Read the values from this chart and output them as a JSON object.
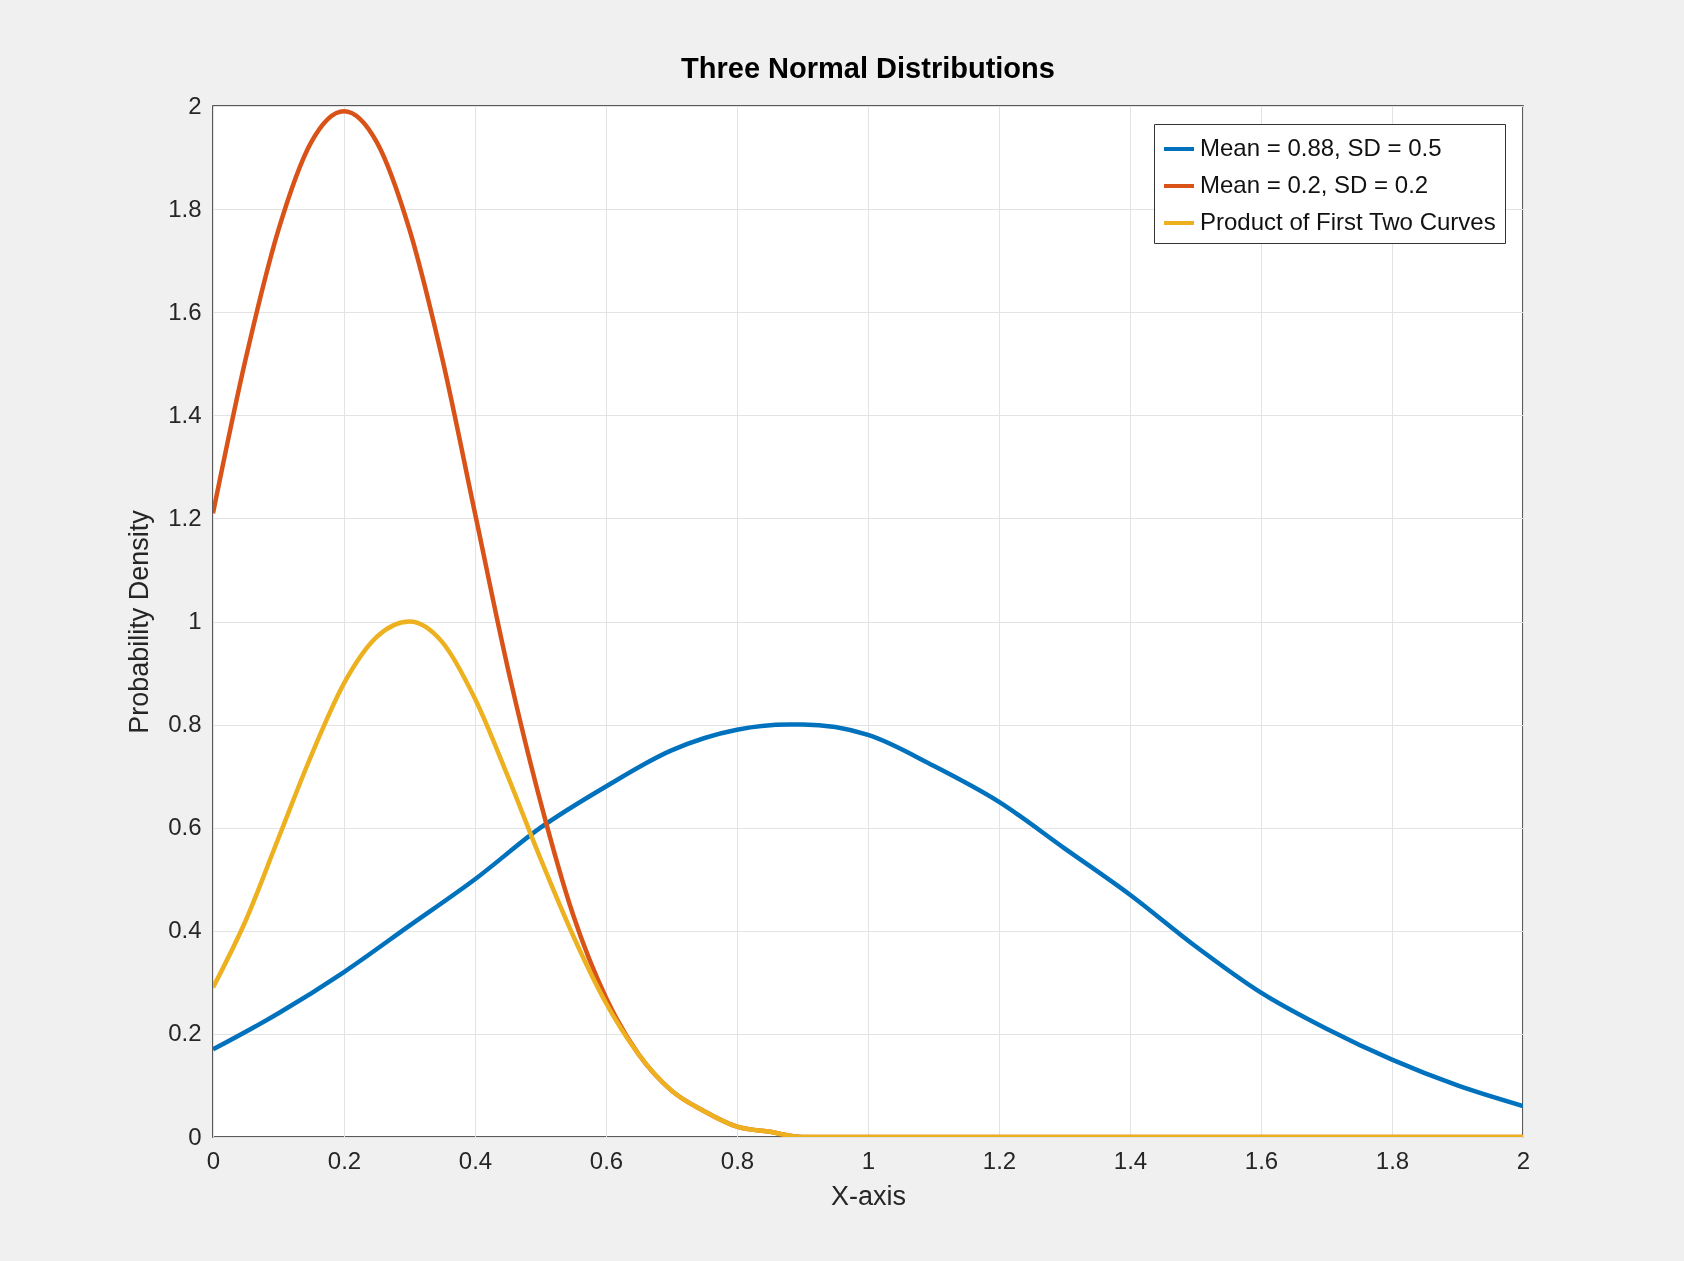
{
  "chart_data": {
    "type": "line",
    "title": "Three Normal Distributions",
    "xlabel": "X-axis",
    "ylabel": "Probability Density",
    "xlim": [
      0,
      2
    ],
    "xticks": [
      0,
      0.2,
      0.4,
      0.6,
      0.8,
      1,
      1.2,
      1.4,
      1.6,
      1.8,
      2
    ],
    "ylim": [
      0,
      2
    ],
    "yticks": [
      0,
      0.2,
      0.4,
      0.6,
      0.8,
      1,
      1.2,
      1.4,
      1.6,
      1.8,
      2
    ],
    "grid": true,
    "legend": "top right",
    "line_style": "solid",
    "series": [
      {
        "name": "Mean = 0.88, SD = 0.5",
        "color": "#0072bd",
        "x": [
          0,
          0.1,
          0.2,
          0.3,
          0.4,
          0.5,
          0.6,
          0.7,
          0.8,
          0.88,
          0.9,
          1,
          1.1,
          1.2,
          1.3,
          1.4,
          1.5,
          1.6,
          1.7,
          1.8,
          1.9,
          2
        ],
        "values": [
          0.17,
          0.24,
          0.32,
          0.41,
          0.5,
          0.6,
          0.68,
          0.75,
          0.79,
          0.8,
          0.8,
          0.78,
          0.72,
          0.65,
          0.56,
          0.47,
          0.37,
          0.28,
          0.21,
          0.15,
          0.1,
          0.06
        ]
      },
      {
        "name": "Mean = 0.2, SD = 0.2",
        "color": "#d95319",
        "x": [
          0,
          0.05,
          0.1,
          0.15,
          0.2,
          0.25,
          0.3,
          0.35,
          0.4,
          0.45,
          0.5,
          0.55,
          0.6,
          0.65,
          0.7,
          0.75,
          0.8,
          0.85,
          0.9,
          0.95,
          1,
          1.5,
          2
        ],
        "values": [
          1.21,
          1.51,
          1.76,
          1.93,
          1.99,
          1.93,
          1.76,
          1.51,
          1.21,
          0.91,
          0.65,
          0.43,
          0.27,
          0.16,
          0.09,
          0.05,
          0.02,
          0.01,
          0,
          0,
          0,
          0,
          0
        ]
      },
      {
        "name": "Product of First Two Curves",
        "color": "#edb120",
        "x": [
          0,
          0.05,
          0.1,
          0.15,
          0.2,
          0.25,
          0.3,
          0.35,
          0.4,
          0.45,
          0.5,
          0.55,
          0.6,
          0.65,
          0.7,
          0.75,
          0.8,
          0.85,
          0.9,
          0.95,
          1,
          1.5,
          2
        ],
        "values": [
          0.29,
          0.42,
          0.58,
          0.74,
          0.88,
          0.97,
          1,
          0.96,
          0.85,
          0.7,
          0.54,
          0.39,
          0.26,
          0.16,
          0.09,
          0.05,
          0.02,
          0.01,
          0,
          0,
          0,
          0,
          0
        ]
      }
    ]
  }
}
